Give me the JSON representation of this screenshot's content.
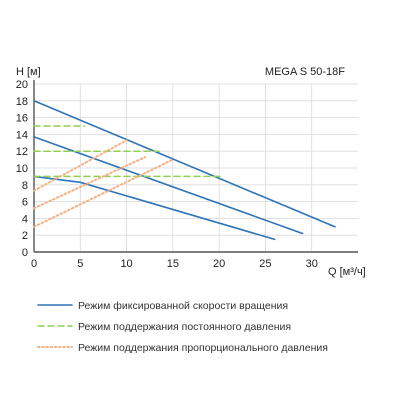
{
  "chart_data": {
    "type": "line",
    "title": "MEGA S 50-18F",
    "ylabel": "H [м]",
    "xlabel": "Q [м³/ч]",
    "xlim": [
      0,
      35
    ],
    "ylim": [
      0,
      20
    ],
    "xticks": [
      "0",
      "5",
      "10",
      "15",
      "20",
      "25",
      "30"
    ],
    "yticks": [
      "0",
      "2",
      "4",
      "6",
      "8",
      "10",
      "12",
      "14",
      "16",
      "18",
      "20"
    ],
    "grid": true,
    "legend_position": "bottom",
    "colors": {
      "fixed": "#2f74b5",
      "constant": "#92d050",
      "proportional": "#f4b183",
      "axis": "#555555",
      "grid": "#d9d9d9"
    },
    "series": [
      {
        "name": "Режим фиксированной скорости вращения",
        "style": "solid",
        "x": [
          0,
          32.5
        ],
        "y": [
          18,
          3
        ]
      },
      {
        "name": "",
        "style": "solid",
        "x": [
          0,
          29
        ],
        "y": [
          13.7,
          2.2
        ]
      },
      {
        "name": "",
        "style": "solid",
        "x": [
          0,
          5,
          26
        ],
        "y": [
          9,
          8.3,
          1.5
        ]
      },
      {
        "name": "Режим поддержания постоянного давления",
        "style": "dashed",
        "x": [
          0,
          5.5
        ],
        "y": [
          15,
          15
        ]
      },
      {
        "name": "",
        "style": "dashed",
        "x": [
          0,
          13.5
        ],
        "y": [
          12,
          12
        ]
      },
      {
        "name": "",
        "style": "dashed",
        "x": [
          0,
          20.5
        ],
        "y": [
          9,
          9
        ]
      },
      {
        "name": "Режим поддержания пропорционального давления",
        "style": "dotted",
        "x": [
          0,
          10
        ],
        "y": [
          7.3,
          13.3
        ]
      },
      {
        "name": "",
        "style": "dotted",
        "x": [
          0,
          12
        ],
        "y": [
          5.2,
          11.3
        ]
      },
      {
        "name": "",
        "style": "dotted",
        "x": [
          0,
          15
        ],
        "y": [
          3,
          11
        ]
      }
    ]
  }
}
